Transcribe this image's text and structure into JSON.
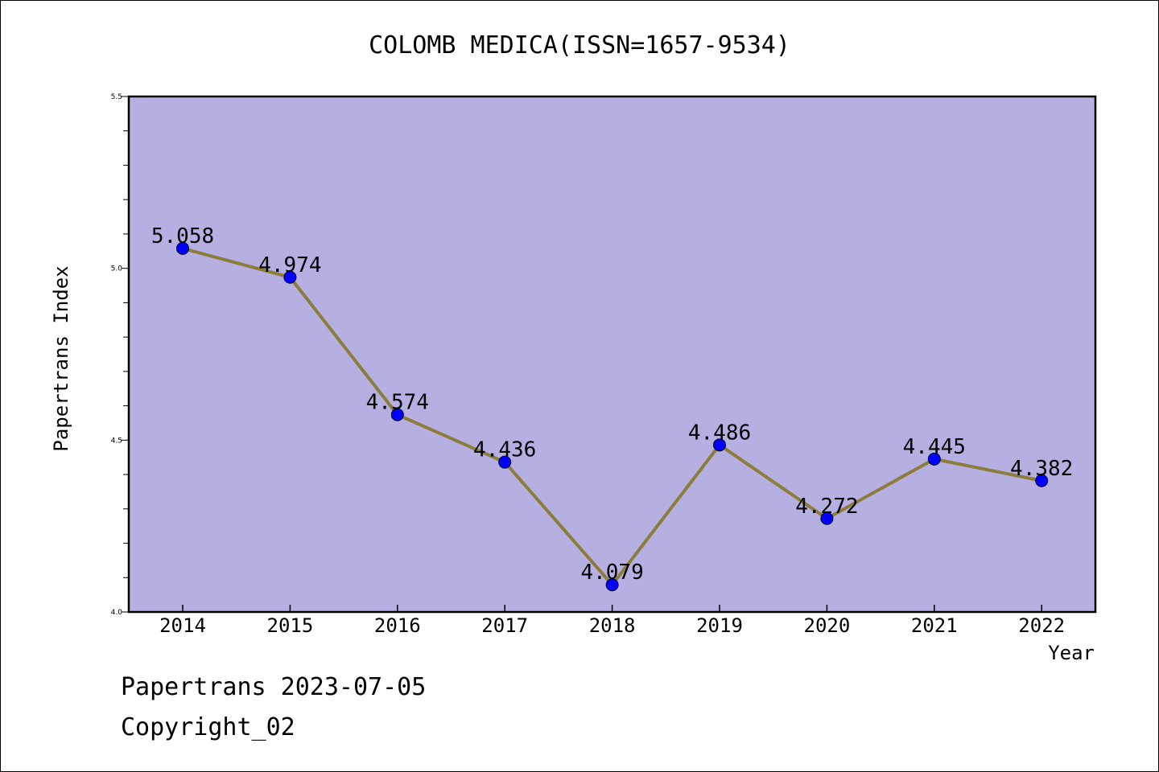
{
  "footer": {
    "line1": "Papertrans 2023-07-05",
    "line2": "Copyright_02"
  },
  "chart_data": {
    "type": "line",
    "title": "COLOMB MEDICA(ISSN=1657-9534)",
    "xlabel": "Year",
    "ylabel": "Papertrans Index",
    "categories": [
      "2014",
      "2015",
      "2016",
      "2017",
      "2018",
      "2019",
      "2020",
      "2021",
      "2022"
    ],
    "values": [
      5.058,
      4.974,
      4.574,
      4.436,
      4.079,
      4.486,
      4.272,
      4.445,
      4.382
    ],
    "data_labels": [
      "5.058",
      "4.974",
      "4.574",
      "4.436",
      "4.079",
      "4.486",
      "4.272",
      "4.445",
      "4.382"
    ],
    "ylim": [
      4.0,
      5.5
    ],
    "y_ticks": [
      "4.0",
      "4.5",
      "5.0",
      "5.5"
    ],
    "grid": false,
    "legend": "none",
    "colors": {
      "plot_background": "#b5afe2",
      "line": "#8b7d3a",
      "marker": "#0000ff"
    }
  }
}
